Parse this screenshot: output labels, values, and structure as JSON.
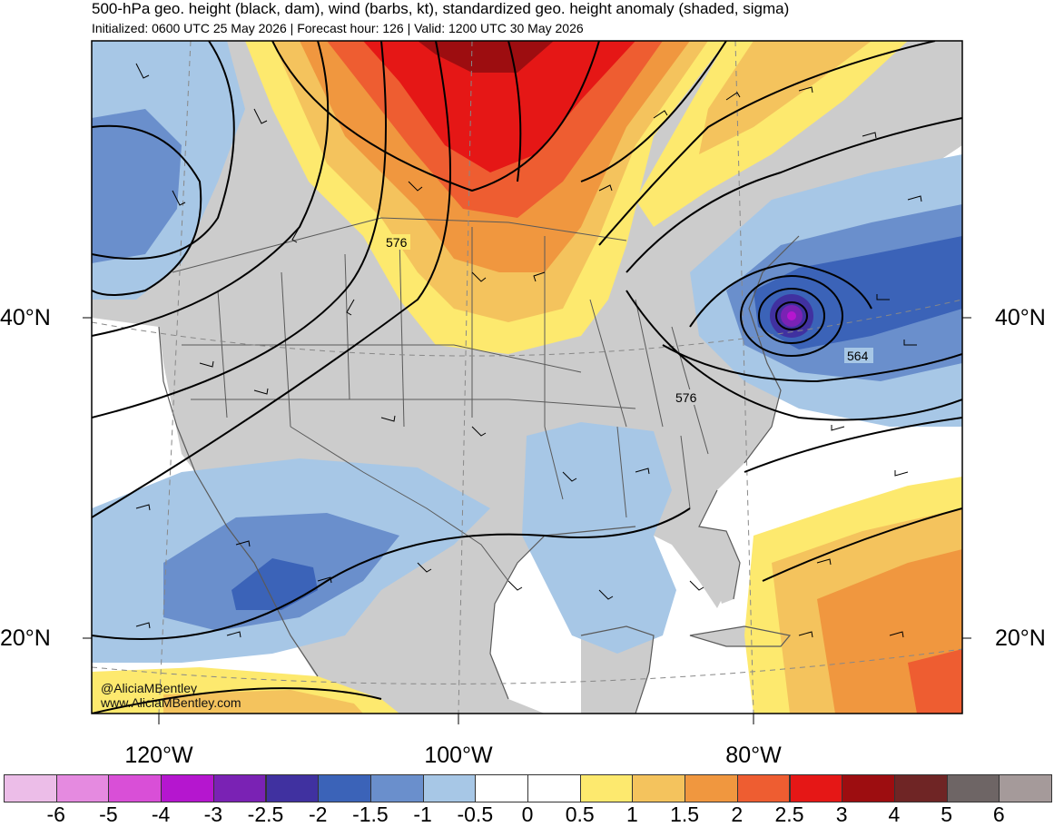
{
  "title": "500-hPa geo. height (black, dam), wind (barbs, kt), standardized geo. height anomaly (shaded, sigma)",
  "subtitle": "Initialized: 0600 UTC 25 May 2026 | Forecast hour: 126 | Valid: 1200 UTC 30 May 2026",
  "lat_labels": {
    "left_40": "40°N",
    "left_20": "20°N",
    "right_40": "40°N",
    "right_20": "20°N"
  },
  "lon_labels": {
    "w120": "120°W",
    "w100": "100°W",
    "w80": "80°W"
  },
  "contour_labels": {
    "c576_north": "576",
    "c564": "564",
    "c576_east": "576"
  },
  "credit": {
    "handle": "@AliciaMBentley",
    "site": "www.AliciaMBentley.com"
  },
  "colorbar": {
    "colors": [
      "#ecbde8",
      "#e58ae0",
      "#d94fd7",
      "#b516cf",
      "#7a22b4",
      "#4031a0",
      "#3b63b8",
      "#6a8fcc",
      "#a7c7e6",
      "#ffffff",
      "#ffffff",
      "#fde96e",
      "#f4c35d",
      "#f0973f",
      "#ee5d31",
      "#e51716",
      "#9d0d10",
      "#6f2525",
      "#6e6565",
      "#a59a9a"
    ],
    "labels": [
      "-6",
      "-5",
      "-4",
      "-3",
      "-2.5",
      "-2",
      "-1.5",
      "-1",
      "-0.5",
      "0",
      "0.5",
      "1",
      "1.5",
      "2",
      "2.5",
      "3",
      "4",
      "5",
      "6"
    ]
  },
  "palette": {
    "land_gray": "#cccccc",
    "ocean": "#ffffff",
    "outline": "#5a5a5a",
    "contour": "#000000"
  }
}
